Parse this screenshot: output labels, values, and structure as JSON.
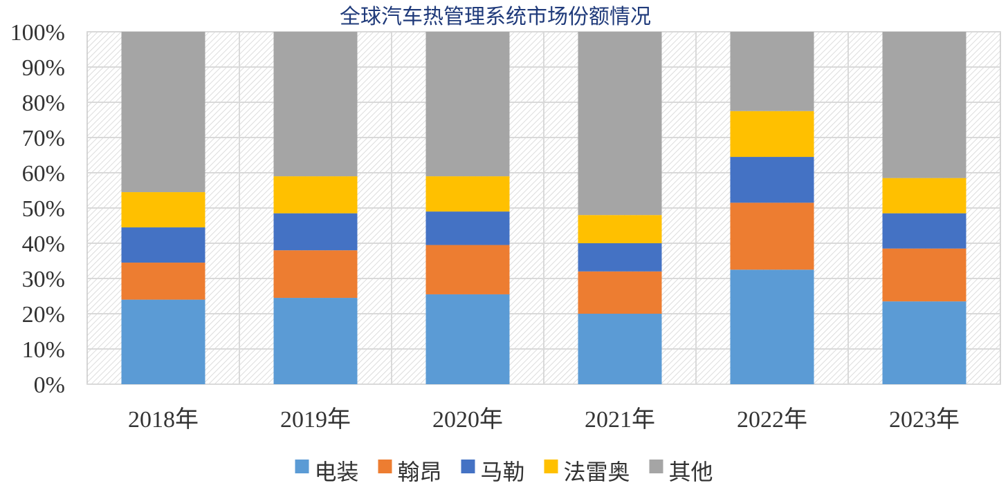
{
  "chart_data": {
    "type": "bar",
    "stacked": true,
    "percent_stacked": true,
    "title": "全球汽车热管理系统市场份额情况",
    "xlabel": "",
    "ylabel": "",
    "ylim": [
      0,
      100
    ],
    "y_tick_labels": [
      "0%",
      "10%",
      "20%",
      "30%",
      "40%",
      "50%",
      "60%",
      "70%",
      "80%",
      "90%",
      "100%"
    ],
    "grid": true,
    "legend_position": "bottom",
    "categories": [
      "2018年",
      "2019年",
      "2020年",
      "2021年",
      "2022年",
      "2023年"
    ],
    "series": [
      {
        "name": "电装",
        "color": "#5B9BD5",
        "values": [
          24,
          24.5,
          25.5,
          20,
          32.5,
          23.5
        ]
      },
      {
        "name": "翰昂",
        "color": "#ED7D31",
        "values": [
          10.5,
          13.5,
          14,
          12,
          19,
          15
        ]
      },
      {
        "name": "马勒",
        "color": "#4472C4",
        "values": [
          10,
          10.5,
          9.5,
          8,
          13,
          10
        ]
      },
      {
        "name": "法雷奥",
        "color": "#FFC000",
        "values": [
          10,
          10.5,
          10,
          8,
          13,
          10
        ]
      },
      {
        "name": "其他",
        "color": "#A5A5A5",
        "values": [
          45.5,
          41,
          41,
          52,
          22.5,
          41.5
        ]
      }
    ]
  }
}
